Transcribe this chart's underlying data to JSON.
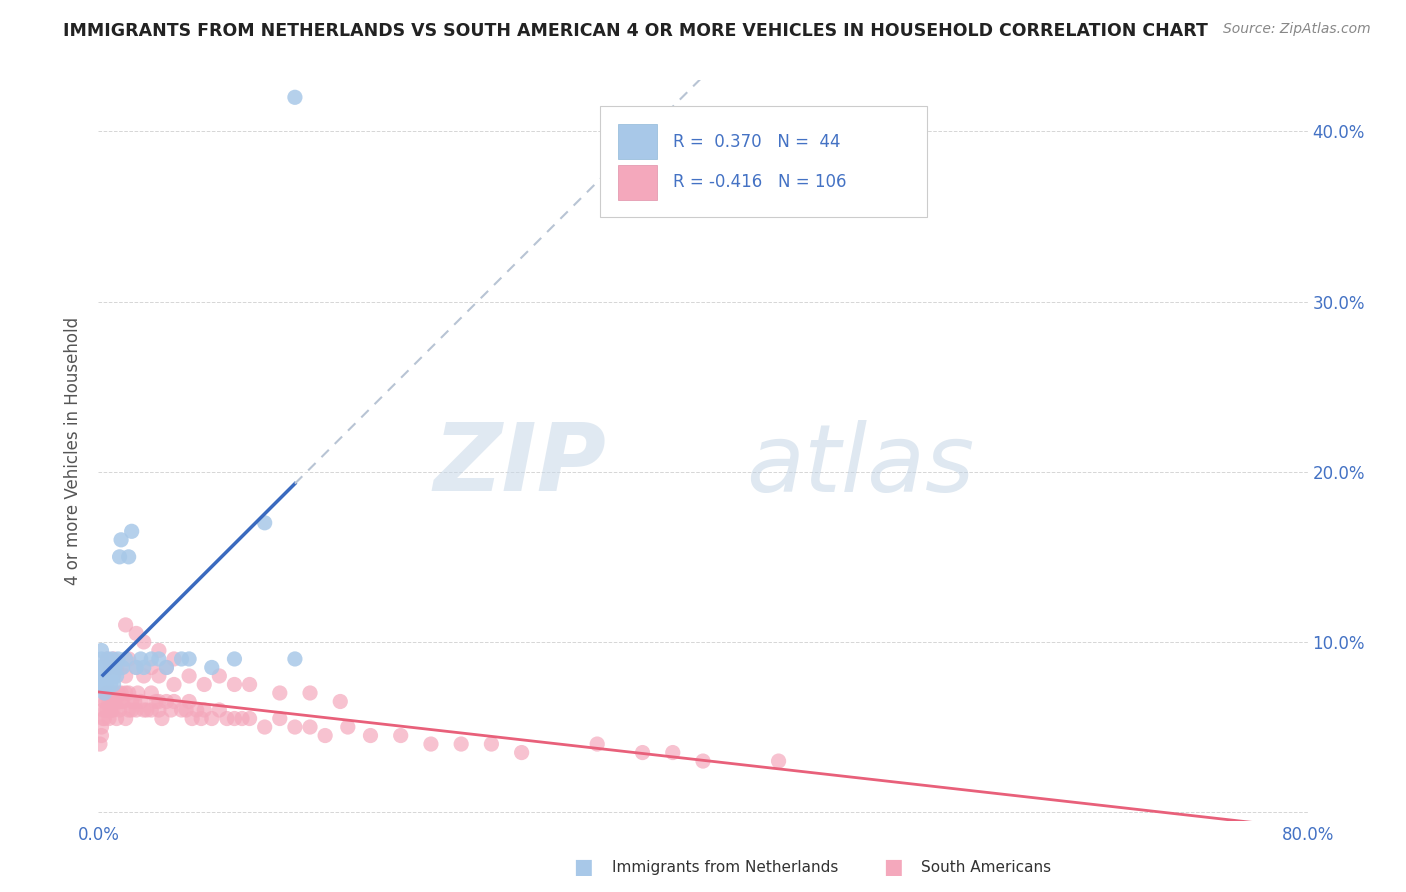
{
  "title": "IMMIGRANTS FROM NETHERLANDS VS SOUTH AMERICAN 4 OR MORE VEHICLES IN HOUSEHOLD CORRELATION CHART",
  "source": "Source: ZipAtlas.com",
  "ylabel": "4 or more Vehicles in Household",
  "xlim": [
    0.0,
    0.8
  ],
  "ylim": [
    -0.005,
    0.43
  ],
  "legend_blue_R": "0.370",
  "legend_blue_N": "44",
  "legend_pink_R": "-0.416",
  "legend_pink_N": "106",
  "color_blue": "#a8c8e8",
  "color_pink": "#f4a8bc",
  "line_blue": "#3a6abf",
  "line_pink": "#e8607a",
  "line_dashed_color": "#b8c4d4",
  "watermark_zip": "ZIP",
  "watermark_atlas": "atlas",
  "blue_x": [
    0.001,
    0.001,
    0.002,
    0.002,
    0.003,
    0.003,
    0.003,
    0.004,
    0.004,
    0.005,
    0.005,
    0.005,
    0.006,
    0.006,
    0.007,
    0.007,
    0.008,
    0.008,
    0.009,
    0.009,
    0.01,
    0.01,
    0.011,
    0.012,
    0.013,
    0.014,
    0.015,
    0.016,
    0.018,
    0.02,
    0.022,
    0.025,
    0.028,
    0.03,
    0.035,
    0.04,
    0.045,
    0.055,
    0.06,
    0.075,
    0.09,
    0.11,
    0.13,
    0.13
  ],
  "blue_y": [
    0.075,
    0.085,
    0.09,
    0.095,
    0.075,
    0.08,
    0.085,
    0.07,
    0.08,
    0.075,
    0.08,
    0.085,
    0.08,
    0.09,
    0.08,
    0.085,
    0.075,
    0.08,
    0.085,
    0.09,
    0.075,
    0.08,
    0.085,
    0.08,
    0.09,
    0.15,
    0.16,
    0.085,
    0.09,
    0.15,
    0.165,
    0.085,
    0.09,
    0.085,
    0.09,
    0.09,
    0.085,
    0.09,
    0.09,
    0.085,
    0.09,
    0.17,
    0.09,
    0.42
  ],
  "pink_x": [
    0.001,
    0.002,
    0.002,
    0.003,
    0.003,
    0.004,
    0.004,
    0.005,
    0.005,
    0.005,
    0.006,
    0.006,
    0.007,
    0.007,
    0.008,
    0.008,
    0.009,
    0.009,
    0.01,
    0.01,
    0.01,
    0.011,
    0.012,
    0.012,
    0.013,
    0.014,
    0.015,
    0.015,
    0.016,
    0.018,
    0.018,
    0.02,
    0.02,
    0.022,
    0.022,
    0.024,
    0.025,
    0.026,
    0.028,
    0.03,
    0.032,
    0.035,
    0.035,
    0.038,
    0.04,
    0.04,
    0.042,
    0.045,
    0.048,
    0.05,
    0.055,
    0.058,
    0.06,
    0.062,
    0.065,
    0.068,
    0.07,
    0.075,
    0.08,
    0.085,
    0.09,
    0.095,
    0.1,
    0.11,
    0.12,
    0.13,
    0.14,
    0.15,
    0.165,
    0.18,
    0.2,
    0.22,
    0.24,
    0.26,
    0.28,
    0.33,
    0.36,
    0.38,
    0.4,
    0.45,
    0.006,
    0.008,
    0.01,
    0.012,
    0.015,
    0.018,
    0.02,
    0.025,
    0.03,
    0.035,
    0.04,
    0.045,
    0.05,
    0.06,
    0.07,
    0.08,
    0.09,
    0.1,
    0.12,
    0.14,
    0.16,
    0.018,
    0.025,
    0.03,
    0.04,
    0.05
  ],
  "pink_y": [
    0.04,
    0.045,
    0.05,
    0.055,
    0.06,
    0.055,
    0.065,
    0.06,
    0.065,
    0.07,
    0.06,
    0.07,
    0.055,
    0.065,
    0.06,
    0.07,
    0.06,
    0.065,
    0.065,
    0.07,
    0.06,
    0.065,
    0.055,
    0.065,
    0.07,
    0.06,
    0.065,
    0.07,
    0.065,
    0.055,
    0.07,
    0.06,
    0.07,
    0.065,
    0.06,
    0.065,
    0.06,
    0.07,
    0.065,
    0.06,
    0.06,
    0.07,
    0.06,
    0.065,
    0.06,
    0.065,
    0.055,
    0.065,
    0.06,
    0.065,
    0.06,
    0.06,
    0.065,
    0.055,
    0.06,
    0.055,
    0.06,
    0.055,
    0.06,
    0.055,
    0.055,
    0.055,
    0.055,
    0.05,
    0.055,
    0.05,
    0.05,
    0.045,
    0.05,
    0.045,
    0.045,
    0.04,
    0.04,
    0.04,
    0.035,
    0.04,
    0.035,
    0.035,
    0.03,
    0.03,
    0.09,
    0.085,
    0.09,
    0.085,
    0.085,
    0.08,
    0.09,
    0.085,
    0.08,
    0.085,
    0.08,
    0.085,
    0.075,
    0.08,
    0.075,
    0.08,
    0.075,
    0.075,
    0.07,
    0.07,
    0.065,
    0.11,
    0.105,
    0.1,
    0.095,
    0.09
  ]
}
